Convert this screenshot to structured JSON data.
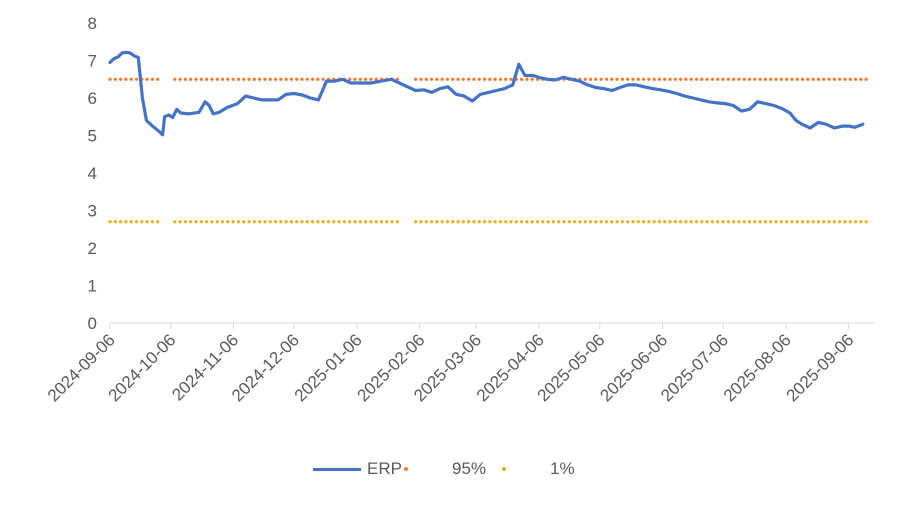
{
  "chart_data": {
    "type": "line",
    "title": "",
    "xlabel": "",
    "ylabel": "",
    "ylim": [
      0,
      8
    ],
    "yticks": [
      "0",
      "1",
      "2",
      "3",
      "4",
      "5",
      "6",
      "7",
      "8"
    ],
    "xlim": [
      "2024-09-06",
      "2025-09-19"
    ],
    "xticks": [
      "2024-09-06",
      "2024-10-06",
      "2024-11-06",
      "2024-12-06",
      "2025-01-06",
      "2025-02-06",
      "2025-03-06",
      "2025-04-06",
      "2025-05-06",
      "2025-06-06",
      "2025-07-06",
      "2025-08-06",
      "2025-09-06"
    ],
    "grid": false,
    "legend_position": "bottom",
    "series": [
      {
        "name": "ERP",
        "color": "#4472c4",
        "style": "solid",
        "points": [
          [
            "2024-09-06",
            6.95
          ],
          [
            "2024-09-08",
            7.05
          ],
          [
            "2024-09-10",
            7.1
          ],
          [
            "2024-09-12",
            7.2
          ],
          [
            "2024-09-14",
            7.22
          ],
          [
            "2024-09-16",
            7.2
          ],
          [
            "2024-09-18",
            7.12
          ],
          [
            "2024-09-20",
            7.08
          ],
          [
            "2024-09-22",
            6.0
          ],
          [
            "2024-09-24",
            5.4
          ],
          [
            "2024-09-27",
            5.25
          ],
          [
            "2024-09-30",
            5.12
          ],
          [
            "2024-10-02",
            5.02
          ],
          [
            "2024-10-03",
            5.5
          ],
          [
            "2024-10-05",
            5.55
          ],
          [
            "2024-10-07",
            5.48
          ],
          [
            "2024-10-09",
            5.7
          ],
          [
            "2024-10-11",
            5.6
          ],
          [
            "2024-10-15",
            5.58
          ],
          [
            "2024-10-20",
            5.62
          ],
          [
            "2024-10-23",
            5.9
          ],
          [
            "2024-10-25",
            5.8
          ],
          [
            "2024-10-27",
            5.58
          ],
          [
            "2024-10-30",
            5.62
          ],
          [
            "2024-11-03",
            5.75
          ],
          [
            "2024-11-08",
            5.85
          ],
          [
            "2024-11-12",
            6.05
          ],
          [
            "2024-11-16",
            6.0
          ],
          [
            "2024-11-20",
            5.95
          ],
          [
            "2024-11-24",
            5.95
          ],
          [
            "2024-11-28",
            5.95
          ],
          [
            "2024-12-02",
            6.1
          ],
          [
            "2024-12-06",
            6.12
          ],
          [
            "2024-12-10",
            6.08
          ],
          [
            "2024-12-14",
            6.0
          ],
          [
            "2024-12-18",
            5.95
          ],
          [
            "2024-12-22",
            6.45
          ],
          [
            "2024-12-26",
            6.45
          ],
          [
            "2024-12-30",
            6.5
          ],
          [
            "2025-01-03",
            6.4
          ],
          [
            "2025-01-08",
            6.4
          ],
          [
            "2025-01-13",
            6.4
          ],
          [
            "2025-01-18",
            6.45
          ],
          [
            "2025-01-23",
            6.5
          ],
          [
            "2025-01-27",
            6.4
          ],
          [
            "2025-01-31",
            6.3
          ],
          [
            "2025-02-04",
            6.2
          ],
          [
            "2025-02-08",
            6.22
          ],
          [
            "2025-02-12",
            6.15
          ],
          [
            "2025-02-16",
            6.25
          ],
          [
            "2025-02-20",
            6.3
          ],
          [
            "2025-02-24",
            6.1
          ],
          [
            "2025-02-28",
            6.05
          ],
          [
            "2025-03-04",
            5.92
          ],
          [
            "2025-03-08",
            6.1
          ],
          [
            "2025-03-12",
            6.15
          ],
          [
            "2025-03-16",
            6.2
          ],
          [
            "2025-03-20",
            6.25
          ],
          [
            "2025-03-24",
            6.35
          ],
          [
            "2025-03-27",
            6.9
          ],
          [
            "2025-03-30",
            6.6
          ],
          [
            "2025-04-03",
            6.6
          ],
          [
            "2025-04-06",
            6.55
          ],
          [
            "2025-04-10",
            6.5
          ],
          [
            "2025-04-14",
            6.48
          ],
          [
            "2025-04-18",
            6.55
          ],
          [
            "2025-04-22",
            6.5
          ],
          [
            "2025-04-26",
            6.45
          ],
          [
            "2025-04-30",
            6.35
          ],
          [
            "2025-05-04",
            6.28
          ],
          [
            "2025-05-08",
            6.25
          ],
          [
            "2025-05-12",
            6.2
          ],
          [
            "2025-05-16",
            6.28
          ],
          [
            "2025-05-20",
            6.35
          ],
          [
            "2025-05-24",
            6.35
          ],
          [
            "2025-05-28",
            6.3
          ],
          [
            "2025-06-01",
            6.25
          ],
          [
            "2025-06-05",
            6.22
          ],
          [
            "2025-06-09",
            6.18
          ],
          [
            "2025-06-13",
            6.12
          ],
          [
            "2025-06-17",
            6.05
          ],
          [
            "2025-06-21",
            6.0
          ],
          [
            "2025-06-25",
            5.95
          ],
          [
            "2025-06-29",
            5.9
          ],
          [
            "2025-07-03",
            5.87
          ],
          [
            "2025-07-07",
            5.85
          ],
          [
            "2025-07-11",
            5.8
          ],
          [
            "2025-07-15",
            5.65
          ],
          [
            "2025-07-19",
            5.7
          ],
          [
            "2025-07-23",
            5.9
          ],
          [
            "2025-07-27",
            5.85
          ],
          [
            "2025-07-31",
            5.8
          ],
          [
            "2025-08-04",
            5.72
          ],
          [
            "2025-08-08",
            5.6
          ],
          [
            "2025-08-11",
            5.4
          ],
          [
            "2025-08-14",
            5.3
          ],
          [
            "2025-08-18",
            5.2
          ],
          [
            "2025-08-22",
            5.35
          ],
          [
            "2025-08-26",
            5.3
          ],
          [
            "2025-08-30",
            5.2
          ],
          [
            "2025-09-03",
            5.25
          ],
          [
            "2025-09-06",
            5.25
          ],
          [
            "2025-09-09",
            5.22
          ],
          [
            "2025-09-13",
            5.3
          ]
        ]
      },
      {
        "name": "95%",
        "color": "#ed7d31",
        "style": "dotted",
        "segments": [
          {
            "x": [
              "2024-09-06",
              "2024-09-30"
            ],
            "y": 6.5
          },
          {
            "x": [
              "2024-10-08",
              "2025-01-26"
            ],
            "y": 6.5
          },
          {
            "x": [
              "2025-02-04",
              "2025-09-16"
            ],
            "y": 6.5
          }
        ]
      },
      {
        "name": "1%",
        "color": "#e6b119",
        "style": "dotted",
        "segments": [
          {
            "x": [
              "2024-09-06",
              "2024-09-30"
            ],
            "y": 2.7
          },
          {
            "x": [
              "2024-10-08",
              "2025-01-26"
            ],
            "y": 2.7
          },
          {
            "x": [
              "2025-02-04",
              "2025-09-16"
            ],
            "y": 2.7
          }
        ]
      }
    ]
  },
  "legend": {
    "erp_label": "ERP",
    "p95_label": "95%",
    "p1_label": "1%"
  }
}
